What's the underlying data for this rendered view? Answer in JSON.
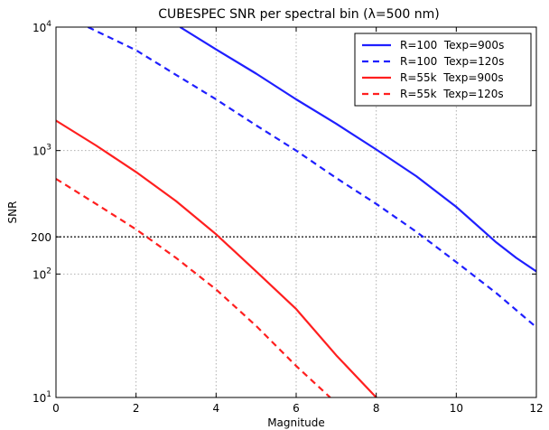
{
  "chart_data": {
    "type": "line",
    "title": "CUBESPEC SNR per spectral bin  (λ=500 nm)",
    "xlabel": "Magnitude",
    "ylabel": "SNR",
    "xlim": [
      0,
      12
    ],
    "ylim": [
      10,
      10000
    ],
    "yscale": "log",
    "grid": true,
    "legend_position": "top-right",
    "x_ticks": [
      0,
      2,
      4,
      6,
      8,
      10,
      12
    ],
    "x_tick_labels": [
      "0",
      "2",
      "4",
      "6",
      "8",
      "10",
      "12"
    ],
    "y_ticks": [
      {
        "value": 10,
        "base": "10",
        "exp": "1"
      },
      {
        "value": 100,
        "base": "10",
        "exp": "2"
      },
      {
        "value": 200,
        "base": "200",
        "exp": ""
      },
      {
        "value": 1000,
        "base": "10",
        "exp": "3"
      },
      {
        "value": 10000,
        "base": "10",
        "exp": "4"
      }
    ],
    "reference_line": {
      "y": 200,
      "style": "dotted"
    },
    "series": [
      {
        "name": "R=100  Texp=900s",
        "color": "#1f1fff",
        "dash": "solid",
        "x": [
          3.1,
          4.0,
          5.0,
          6.0,
          7.0,
          8.0,
          9.0,
          10.0,
          11.0,
          11.5,
          12.0
        ],
        "y": [
          10000,
          6600,
          4200,
          2600,
          1650,
          1020,
          620,
          350,
          180,
          135,
          105
        ]
      },
      {
        "name": "R=100  Texp=120s",
        "color": "#1f1fff",
        "dash": "dashed",
        "x": [
          0.8,
          2.0,
          3.0,
          4.0,
          5.0,
          6.0,
          7.0,
          8.0,
          9.0,
          10.0,
          11.0,
          12.0
        ],
        "y": [
          10000,
          6500,
          4100,
          2600,
          1600,
          1000,
          600,
          370,
          220,
          125,
          70,
          37
        ]
      },
      {
        "name": "R=55k  Texp=900s",
        "color": "#ff1f1f",
        "dash": "solid",
        "x": [
          0,
          1.0,
          2.0,
          3.0,
          4.0,
          5.0,
          6.0,
          7.0,
          8.0
        ],
        "y": [
          1750,
          1100,
          670,
          390,
          210,
          105,
          52,
          22,
          10
        ]
      },
      {
        "name": "R=55k  Texp=120s",
        "color": "#ff1f1f",
        "dash": "dashed",
        "x": [
          0,
          1.0,
          2.0,
          3.0,
          4.0,
          5.0,
          6.0,
          6.85
        ],
        "y": [
          590,
          370,
          230,
          135,
          75,
          38,
          18,
          10
        ]
      }
    ]
  }
}
